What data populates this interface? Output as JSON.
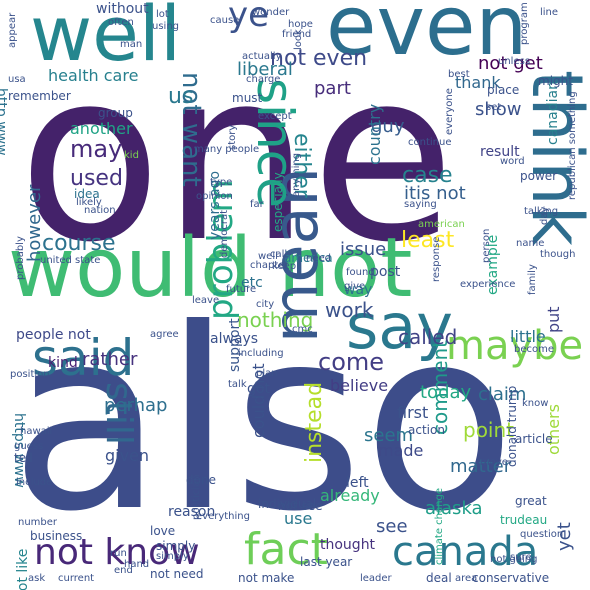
{
  "words": [
    {
      "text": "one",
      "color": "#44226a"
    },
    {
      "text": "also",
      "color": "#3d4d8a"
    },
    {
      "text": "would not",
      "color": "#3fbc73"
    },
    {
      "text": "even",
      "color": "#2c6e8e"
    },
    {
      "text": "well",
      "color": "#25868e"
    },
    {
      "text": "think",
      "color": "#2e6d8e"
    },
    {
      "text": "say",
      "color": "#2a788e"
    },
    {
      "text": "said",
      "color": "#2d718e"
    },
    {
      "text": "maybe",
      "color": "#7ad151"
    },
    {
      "text": "mean",
      "color": "#38598c"
    },
    {
      "text": "since",
      "color": "#1fa187"
    },
    {
      "text": "fact",
      "color": "#6ece58"
    },
    {
      "text": "canada",
      "color": "#2a788e"
    },
    {
      "text": "not know",
      "color": "#482878"
    },
    {
      "text": "problem",
      "color": "#22a884"
    },
    {
      "text": "still",
      "color": "#31688e"
    },
    {
      "text": "not want",
      "color": "#2f6c8e"
    },
    {
      "text": "us",
      "color": "#2a788e"
    },
    {
      "text": "ye",
      "color": "#3b528b"
    },
    {
      "text": "not even",
      "color": "#3e4a89"
    },
    {
      "text": "either",
      "color": "#25858e"
    },
    {
      "text": "come",
      "color": "#433e85"
    },
    {
      "text": "instead",
      "color": "#b5de2b"
    },
    {
      "text": "comment",
      "color": "#1f9a8a"
    },
    {
      "text": "course",
      "color": "#2c728e"
    },
    {
      "text": "may",
      "color": "#472a7a"
    },
    {
      "text": "used",
      "color": "#463480"
    },
    {
      "text": "least",
      "color": "#fde725"
    },
    {
      "text": "work",
      "color": "#3b528b"
    },
    {
      "text": "nothing",
      "color": "#7ad151"
    },
    {
      "text": "called",
      "color": "#414487"
    },
    {
      "text": "case",
      "color": "#26828e"
    },
    {
      "text": "itis not",
      "color": "#355f8d"
    },
    {
      "text": "guy",
      "color": "#365c8d"
    },
    {
      "text": "show",
      "color": "#3b528b"
    },
    {
      "text": "part",
      "color": "#472d7b"
    },
    {
      "text": "liberal",
      "color": "#2a788e"
    },
    {
      "text": "health care",
      "color": "#27808e"
    },
    {
      "text": "not get",
      "color": "#440154"
    },
    {
      "text": "thank",
      "color": "#31688e"
    },
    {
      "text": "however",
      "color": "#31688e"
    },
    {
      "text": "another",
      "color": "#20a386"
    },
    {
      "text": "country",
      "color": "#2c728e"
    },
    {
      "text": "issue",
      "color": "#3b528b"
    },
    {
      "text": "rather",
      "color": "#46327e"
    },
    {
      "text": "kind",
      "color": "#482173"
    },
    {
      "text": "people not",
      "color": "#3e4989"
    },
    {
      "text": "perhap",
      "color": "#2e6f8e"
    },
    {
      "text": "believe",
      "color": "#433e85"
    },
    {
      "text": "today",
      "color": "#22a884"
    },
    {
      "text": "claim",
      "color": "#2d708e"
    },
    {
      "text": "seem",
      "color": "#2b758e"
    },
    {
      "text": "point",
      "color": "#a0da39"
    },
    {
      "text": "matter",
      "color": "#31688e"
    },
    {
      "text": "could not",
      "color": "#3b528b"
    },
    {
      "text": "made",
      "color": "#3e4a89"
    },
    {
      "text": "first",
      "color": "#3b528b"
    },
    {
      "text": "already",
      "color": "#35b779"
    },
    {
      "text": "see",
      "color": "#3b528b"
    },
    {
      "text": "given",
      "color": "#3b528b"
    },
    {
      "text": "use",
      "color": "#2a788e"
    },
    {
      "text": "alaska",
      "color": "#1f9e89"
    },
    {
      "text": "thought",
      "color": "#46327e"
    },
    {
      "text": "yet",
      "color": "#3b528b"
    },
    {
      "text": "others",
      "color": "#9fda3a"
    },
    {
      "text": "years ago",
      "color": "#2e6e8e"
    },
    {
      "text": "support",
      "color": "#39568c"
    },
    {
      "text": "etc",
      "color": "#2c728e"
    },
    {
      "text": "way",
      "color": "#2c728e"
    },
    {
      "text": "post",
      "color": "#3b528b"
    },
    {
      "text": "put",
      "color": "#414487"
    },
    {
      "text": "little",
      "color": "#2c728e"
    },
    {
      "text": "left",
      "color": "#3b528b"
    },
    {
      "text": "especially",
      "color": "#22a884"
    },
    {
      "text": "result",
      "color": "#414487"
    },
    {
      "text": "example",
      "color": "#22a884"
    },
    {
      "text": "canadian",
      "color": "#27808e"
    },
    {
      "text": "got",
      "color": "#3b528b"
    },
    {
      "text": "always",
      "color": "#3b528b"
    },
    {
      "text": "http www",
      "color": "#2c728e"
    },
    {
      "text": "https www",
      "color": "#2c728e"
    },
    {
      "text": "not like",
      "color": "#25858e"
    },
    {
      "text": "not see",
      "color": "#3b528b"
    },
    {
      "text": "must",
      "color": "#3b528b"
    },
    {
      "text": "idea",
      "color": "#2c728e"
    },
    {
      "text": "without",
      "color": "#3b528b"
    },
    {
      "text": "remember",
      "color": "#3b528b"
    },
    {
      "text": "business",
      "color": "#3b528b"
    },
    {
      "text": "ask",
      "color": "#3b528b"
    },
    {
      "text": "last year",
      "color": "#3b528b"
    },
    {
      "text": "deal",
      "color": "#3b528b"
    },
    {
      "text": "conservative",
      "color": "#3b528b"
    },
    {
      "text": "not need",
      "color": "#3b528b"
    },
    {
      "text": "not make",
      "color": "#3b528b"
    },
    {
      "text": "love",
      "color": "#3b528b"
    },
    {
      "text": "simply",
      "color": "#3b528b"
    },
    {
      "text": "reason",
      "color": "#3b528b"
    },
    {
      "text": "individual",
      "color": "#3b528b"
    },
    {
      "text": "done",
      "color": "#3b528b"
    },
    {
      "text": "america",
      "color": "#2a788e"
    },
    {
      "text": "great",
      "color": "#3b528b"
    },
    {
      "text": "trudeau",
      "color": "#22a884"
    },
    {
      "text": "donald trump",
      "color": "#3b528b"
    },
    {
      "text": "article",
      "color": "#3b528b"
    },
    {
      "text": "action",
      "color": "#3b528b"
    },
    {
      "text": "tell",
      "color": "#3b528b"
    },
    {
      "text": "kid",
      "color": "#7ad151"
    },
    {
      "text": "group",
      "color": "#3b528b"
    },
    {
      "text": "name",
      "color": "#3b528b"
    },
    {
      "text": "person",
      "color": "#3b528b"
    },
    {
      "text": "power",
      "color": "#3b528b"
    },
    {
      "text": "word",
      "color": "#3b528b"
    },
    {
      "text": "saying",
      "color": "#3b528b"
    },
    {
      "text": "everyone",
      "color": "#3b528b"
    },
    {
      "text": "continue",
      "color": "#3b528b"
    },
    {
      "text": "place",
      "color": "#3b528b"
    },
    {
      "text": "might",
      "color": "#3b528b"
    },
    {
      "text": "unless",
      "color": "#3b528b"
    },
    {
      "text": "best",
      "color": "#3b528b"
    },
    {
      "text": "hope",
      "color": "#3b528b"
    },
    {
      "text": "often",
      "color": "#3b528b"
    },
    {
      "text": "using",
      "color": "#3b528b"
    },
    {
      "text": "lot",
      "color": "#3b528b"
    },
    {
      "text": "friend",
      "color": "#3b528b"
    },
    {
      "text": "actually",
      "color": "#3b528b"
    },
    {
      "text": "charge",
      "color": "#3b528b"
    },
    {
      "text": "look",
      "color": "#3b528b"
    },
    {
      "text": "line",
      "color": "#3b528b"
    },
    {
      "text": "program",
      "color": "#3b528b"
    },
    {
      "text": "republican something",
      "color": "#3b528b"
    },
    {
      "text": "climate change",
      "color": "#22a884"
    },
    {
      "text": "question",
      "color": "#3b528b"
    },
    {
      "text": "leader",
      "color": "#3b528b"
    },
    {
      "text": "united state",
      "color": "#3b528b"
    },
    {
      "text": "including",
      "color": "#3b528b"
    },
    {
      "text": "agree",
      "color": "#3b528b"
    },
    {
      "text": "become",
      "color": "#3b528b"
    },
    {
      "text": "city",
      "color": "#3b528b"
    },
    {
      "text": "found",
      "color": "#3b528b"
    },
    {
      "text": "give",
      "color": "#3b528b"
    },
    {
      "text": "keep",
      "color": "#3b528b"
    },
    {
      "text": "call",
      "color": "#3b528b"
    },
    {
      "text": "need",
      "color": "#3b528b"
    },
    {
      "text": "family",
      "color": "#3b528b"
    },
    {
      "text": "far",
      "color": "#3b528b"
    },
    {
      "text": "type",
      "color": "#3b528b"
    },
    {
      "text": "likely",
      "color": "#3b528b"
    },
    {
      "text": "nation",
      "color": "#3b528b"
    },
    {
      "text": "opinion",
      "color": "#3b528b"
    },
    {
      "text": "end",
      "color": "#3b528b"
    },
    {
      "text": "run",
      "color": "#3b528b"
    },
    {
      "text": "number",
      "color": "#3b528b"
    },
    {
      "text": "guess",
      "color": "#3b528b"
    },
    {
      "text": "position",
      "color": "#3b528b"
    },
    {
      "text": "probably",
      "color": "#3b528b"
    },
    {
      "text": "include",
      "color": "#3b528b"
    },
    {
      "text": "hawaii",
      "color": "#3b528b"
    },
    {
      "text": "politician",
      "color": "#3b528b"
    },
    {
      "text": "story",
      "color": "#3b528b"
    },
    {
      "text": "many people",
      "color": "#3b528b"
    },
    {
      "text": "except",
      "color": "#3b528b"
    },
    {
      "text": "talking",
      "color": "#3b528b"
    },
    {
      "text": "day",
      "color": "#3b528b"
    },
    {
      "text": "though",
      "color": "#3b528b"
    },
    {
      "text": "set",
      "color": "#3b528b"
    },
    {
      "text": "anything",
      "color": "#3b528b"
    },
    {
      "text": "future",
      "color": "#3b528b"
    },
    {
      "text": "plan",
      "color": "#3b528b"
    },
    {
      "text": "talk",
      "color": "#3b528b"
    },
    {
      "text": "move",
      "color": "#3b528b"
    },
    {
      "text": "area",
      "color": "#3b528b"
    },
    {
      "text": "sure",
      "color": "#3b528b"
    },
    {
      "text": "simply",
      "color": "#3b528b"
    },
    {
      "text": "hand",
      "color": "#3b528b"
    },
    {
      "text": "current",
      "color": "#3b528b"
    },
    {
      "text": "know",
      "color": "#3b528b"
    },
    {
      "text": "american",
      "color": "#7ad151"
    },
    {
      "text": "appear",
      "color": "#3b528b"
    },
    {
      "text": "wonder",
      "color": "#3b528b"
    },
    {
      "text": "cause",
      "color": "#3b528b"
    },
    {
      "text": "usa",
      "color": "#3b528b"
    },
    {
      "text": "man",
      "color": "#3b528b"
    },
    {
      "text": "cmc",
      "color": "#3b528b"
    },
    {
      "text": "well",
      "color": "#3b528b"
    },
    {
      "text": "democrat",
      "color": "#3b528b"
    },
    {
      "text": "leave",
      "color": "#3b528b"
    },
    {
      "text": "response",
      "color": "#3b528b"
    },
    {
      "text": "experience",
      "color": "#3b528b"
    },
    {
      "text": "chapter",
      "color": "#3b528b"
    },
    {
      "text": "everything",
      "color": "#3b528b"
    },
    {
      "text": "not going",
      "color": "#3b528b"
    }
  ]
}
